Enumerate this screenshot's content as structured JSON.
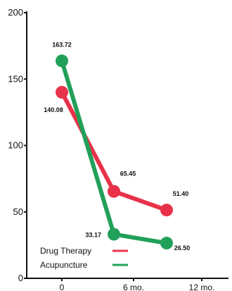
{
  "chart_data": {
    "type": "line",
    "x_ticks": [
      "0",
      "6 mo.",
      "12 mo."
    ],
    "y_ticks": [
      0,
      50,
      100,
      150,
      200
    ],
    "ylim": [
      0,
      200
    ],
    "grid": false,
    "legend_position": "bottom-left",
    "series": [
      {
        "name": "Drug Therapy",
        "color": "#e8324a",
        "points": [
          {
            "x": 0,
            "y": 140.08,
            "label": "140.08"
          },
          {
            "x": 6,
            "y": 65.45,
            "label": "65.45"
          },
          {
            "x": 12,
            "y": 51.4,
            "label": "51.40"
          }
        ]
      },
      {
        "name": "Acupuncture",
        "color": "#21a05a",
        "points": [
          {
            "x": 0,
            "y": 163.72,
            "label": "163.72"
          },
          {
            "x": 6,
            "y": 33.17,
            "label": "33.17"
          },
          {
            "x": 12,
            "y": 26.5,
            "label": "26.50"
          }
        ]
      }
    ]
  }
}
